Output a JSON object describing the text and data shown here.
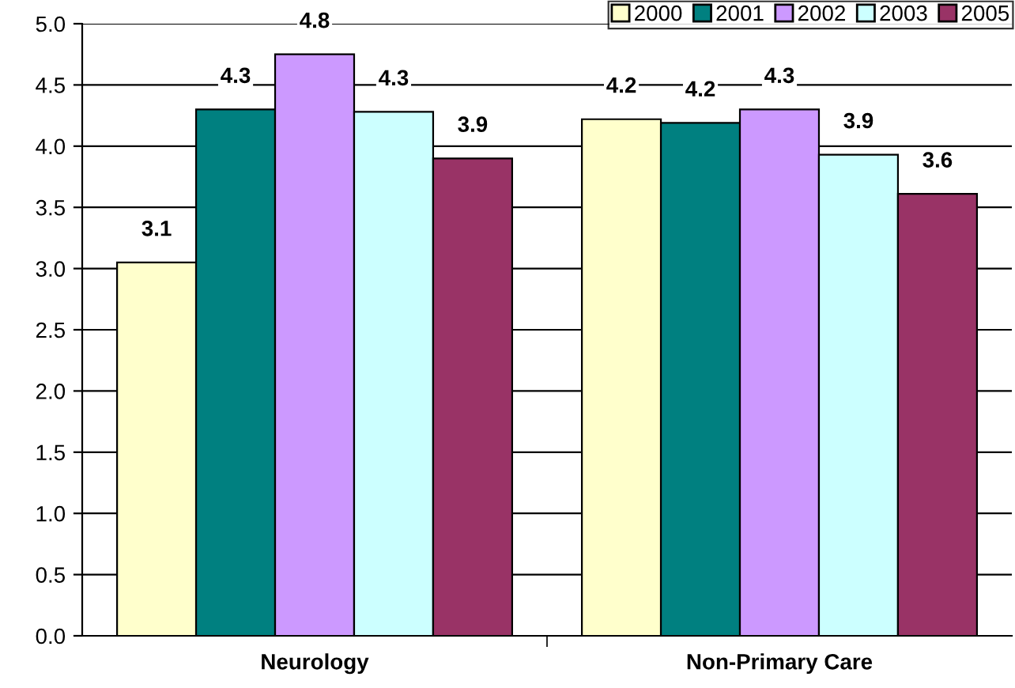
{
  "chart_data": {
    "type": "bar",
    "categories": [
      "Neurology",
      "Non-Primary Care"
    ],
    "series": [
      {
        "name": "2000",
        "color": "#ffffcc",
        "values": [
          3.05,
          4.22
        ],
        "value_labels": [
          "3.1",
          "4.2"
        ]
      },
      {
        "name": "2001",
        "color": "#008080",
        "values": [
          4.3,
          4.19
        ],
        "value_labels": [
          "4.3",
          "4.2"
        ]
      },
      {
        "name": "2002",
        "color": "#cc99ff",
        "values": [
          4.75,
          4.3
        ],
        "value_labels": [
          "4.8",
          "4.3"
        ]
      },
      {
        "name": "2003",
        "color": "#ccffff",
        "values": [
          4.28,
          3.93
        ],
        "value_labels": [
          "4.3",
          "3.9"
        ]
      },
      {
        "name": "2005",
        "color": "#993366",
        "values": [
          3.9,
          3.61
        ],
        "value_labels": [
          "3.9",
          "3.6"
        ]
      }
    ],
    "ylim": [
      0,
      5
    ],
    "yticks": [
      {
        "value": 0,
        "label": "0.0"
      },
      {
        "value": 0.5,
        "label": "0.5"
      },
      {
        "value": 1,
        "label": "1.0"
      },
      {
        "value": 1.5,
        "label": "1.5"
      },
      {
        "value": 2,
        "label": "2.0"
      },
      {
        "value": 2.5,
        "label": "2.5"
      },
      {
        "value": 3,
        "label": "3.0"
      },
      {
        "value": 3.5,
        "label": "3.5"
      },
      {
        "value": 4,
        "label": "4.0"
      },
      {
        "value": 4.5,
        "label": "4.5"
      },
      {
        "value": 5,
        "label": "5.0"
      }
    ],
    "grid": "y",
    "legend": "top right"
  }
}
